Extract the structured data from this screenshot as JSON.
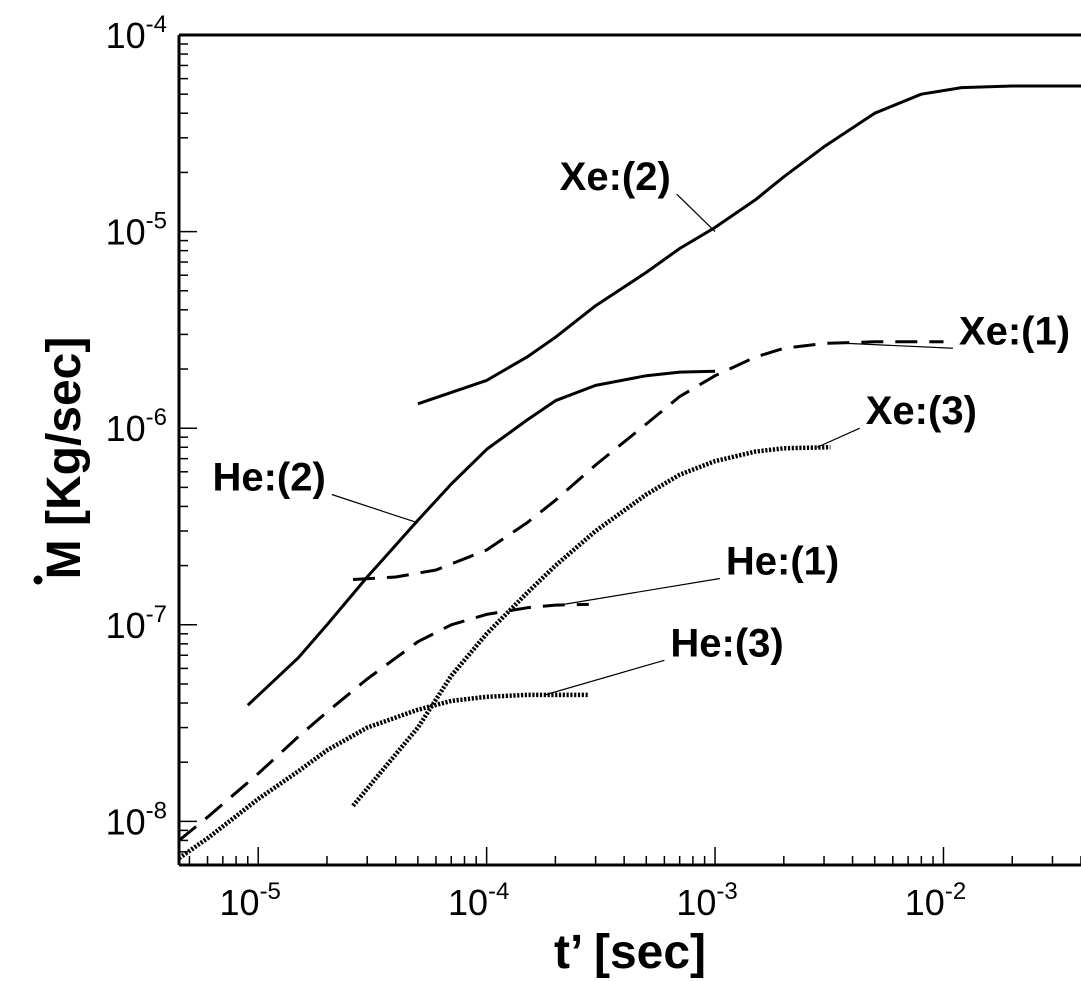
{
  "chart_data": {
    "type": "line",
    "xlabel": "t’ [sec]",
    "ylabel": "M [Kg/sec]",
    "x_scale": "log",
    "y_scale": "log",
    "xlim": [
      4.5e-06,
      0.04
    ],
    "ylim": [
      6e-09,
      0.0001
    ],
    "grid": false,
    "legend": "none",
    "x_ticks": [
      {
        "base": "10",
        "exp": "-5",
        "value": 1e-05
      },
      {
        "base": "10",
        "exp": "-4",
        "value": 0.0001
      },
      {
        "base": "10",
        "exp": "-3",
        "value": 0.001
      },
      {
        "base": "10",
        "exp": "-2",
        "value": 0.01
      }
    ],
    "y_ticks": [
      {
        "base": "10",
        "exp": "-8",
        "value": 1e-08
      },
      {
        "base": "10",
        "exp": "-7",
        "value": 1e-07
      },
      {
        "base": "10",
        "exp": "-6",
        "value": 1e-06
      },
      {
        "base": "10",
        "exp": "-5",
        "value": 1e-05
      },
      {
        "base": "10",
        "exp": "-4",
        "value": 0.0001
      }
    ],
    "series": [
      {
        "name": "Xe:(2)",
        "style": "solid",
        "label_at": [
          0.00068,
          1.55e-05
        ],
        "pointer_at": [
          0.001,
          1e-05
        ],
        "points": [
          [
            5e-05,
            1.33e-06
          ],
          [
            0.0001,
            1.75e-06
          ],
          [
            0.00015,
            2.3e-06
          ],
          [
            0.0002,
            2.9e-06
          ],
          [
            0.0003,
            4.2e-06
          ],
          [
            0.0005,
            6.2e-06
          ],
          [
            0.0007,
            8.2e-06
          ],
          [
            0.001,
            1.05e-05
          ],
          [
            0.0015,
            1.45e-05
          ],
          [
            0.002,
            1.9e-05
          ],
          [
            0.003,
            2.7e-05
          ],
          [
            0.005,
            4e-05
          ],
          [
            0.008,
            5e-05
          ],
          [
            0.012,
            5.4e-05
          ],
          [
            0.02,
            5.5e-05
          ],
          [
            0.04,
            5.5e-05
          ]
        ]
      },
      {
        "name": "Xe:(1)",
        "style": "dashed",
        "label_at": [
          0.011,
          2.55e-06
        ],
        "pointer_at": [
          0.0038,
          2.7e-06
        ],
        "points": [
          [
            2.6e-05,
            1.7e-07
          ],
          [
            4e-05,
            1.75e-07
          ],
          [
            6e-05,
            1.9e-07
          ],
          [
            0.0001,
            2.4e-07
          ],
          [
            0.00015,
            3.3e-07
          ],
          [
            0.0002,
            4.3e-07
          ],
          [
            0.0003,
            6.5e-07
          ],
          [
            0.0005,
            1.05e-06
          ],
          [
            0.0007,
            1.45e-06
          ],
          [
            0.001,
            1.85e-06
          ],
          [
            0.0015,
            2.3e-06
          ],
          [
            0.002,
            2.55e-06
          ],
          [
            0.003,
            2.7e-06
          ],
          [
            0.005,
            2.75e-06
          ],
          [
            0.01,
            2.75e-06
          ]
        ]
      },
      {
        "name": "Xe:(3)",
        "style": "dotted",
        "label_at": [
          0.0043,
          1e-06
        ],
        "pointer_at": [
          0.0028,
          8e-07
        ],
        "points": [
          [
            2.6e-05,
            1.2e-08
          ],
          [
            5e-05,
            3e-08
          ],
          [
            7e-05,
            5.5e-08
          ],
          [
            0.0001,
            9e-08
          ],
          [
            0.00015,
            1.45e-07
          ],
          [
            0.0002,
            2e-07
          ],
          [
            0.0003,
            3e-07
          ],
          [
            0.0005,
            4.6e-07
          ],
          [
            0.0007,
            5.8e-07
          ],
          [
            0.001,
            6.8e-07
          ],
          [
            0.0015,
            7.6e-07
          ],
          [
            0.002,
            7.9e-07
          ],
          [
            0.0032,
            8e-07
          ]
        ]
      },
      {
        "name": "He:(2)",
        "style": "solid",
        "label_at": [
          2.1e-05,
          4.6e-07
        ],
        "pointer_at": [
          5e-05,
          3.3e-07
        ],
        "points": [
          [
            9e-06,
            3.9e-08
          ],
          [
            1.5e-05,
            6.8e-08
          ],
          [
            2e-05,
            1e-07
          ],
          [
            3e-05,
            1.75e-07
          ],
          [
            5e-05,
            3.4e-07
          ],
          [
            7e-05,
            5.2e-07
          ],
          [
            0.0001,
            7.8e-07
          ],
          [
            0.00015,
            1.1e-06
          ],
          [
            0.0002,
            1.38e-06
          ],
          [
            0.0003,
            1.65e-06
          ],
          [
            0.0005,
            1.85e-06
          ],
          [
            0.0007,
            1.93e-06
          ],
          [
            0.001,
            1.95e-06
          ]
        ]
      },
      {
        "name": "He:(1)",
        "style": "dashed",
        "label_at": [
          0.00105,
          1.72e-07
        ],
        "pointer_at": [
          0.0002,
          1.25e-07
        ],
        "points": [
          [
            4.5e-06,
            8e-09
          ],
          [
            6e-06,
            1.05e-08
          ],
          [
            1e-05,
            1.75e-08
          ],
          [
            1.5e-05,
            2.7e-08
          ],
          [
            2e-05,
            3.6e-08
          ],
          [
            3e-05,
            5.3e-08
          ],
          [
            5e-05,
            8.2e-08
          ],
          [
            7e-05,
            1e-07
          ],
          [
            0.0001,
            1.13e-07
          ],
          [
            0.00015,
            1.22e-07
          ],
          [
            0.0002,
            1.26e-07
          ],
          [
            0.00028,
            1.27e-07
          ]
        ]
      },
      {
        "name": "He:(3)",
        "style": "dotted",
        "label_at": [
          0.0006,
          6.6e-08
        ],
        "pointer_at": [
          0.00018,
          4.4e-08
        ],
        "points": [
          [
            4.5e-06,
            6.5e-09
          ],
          [
            6e-06,
            8.2e-09
          ],
          [
            1e-05,
            1.3e-08
          ],
          [
            1.5e-05,
            1.8e-08
          ],
          [
            2e-05,
            2.3e-08
          ],
          [
            3e-05,
            3e-08
          ],
          [
            5e-05,
            3.7e-08
          ],
          [
            7e-05,
            4.1e-08
          ],
          [
            0.0001,
            4.3e-08
          ],
          [
            0.00015,
            4.4e-08
          ],
          [
            0.0002,
            4.4e-08
          ],
          [
            0.00028,
            4.4e-08
          ]
        ]
      }
    ]
  }
}
